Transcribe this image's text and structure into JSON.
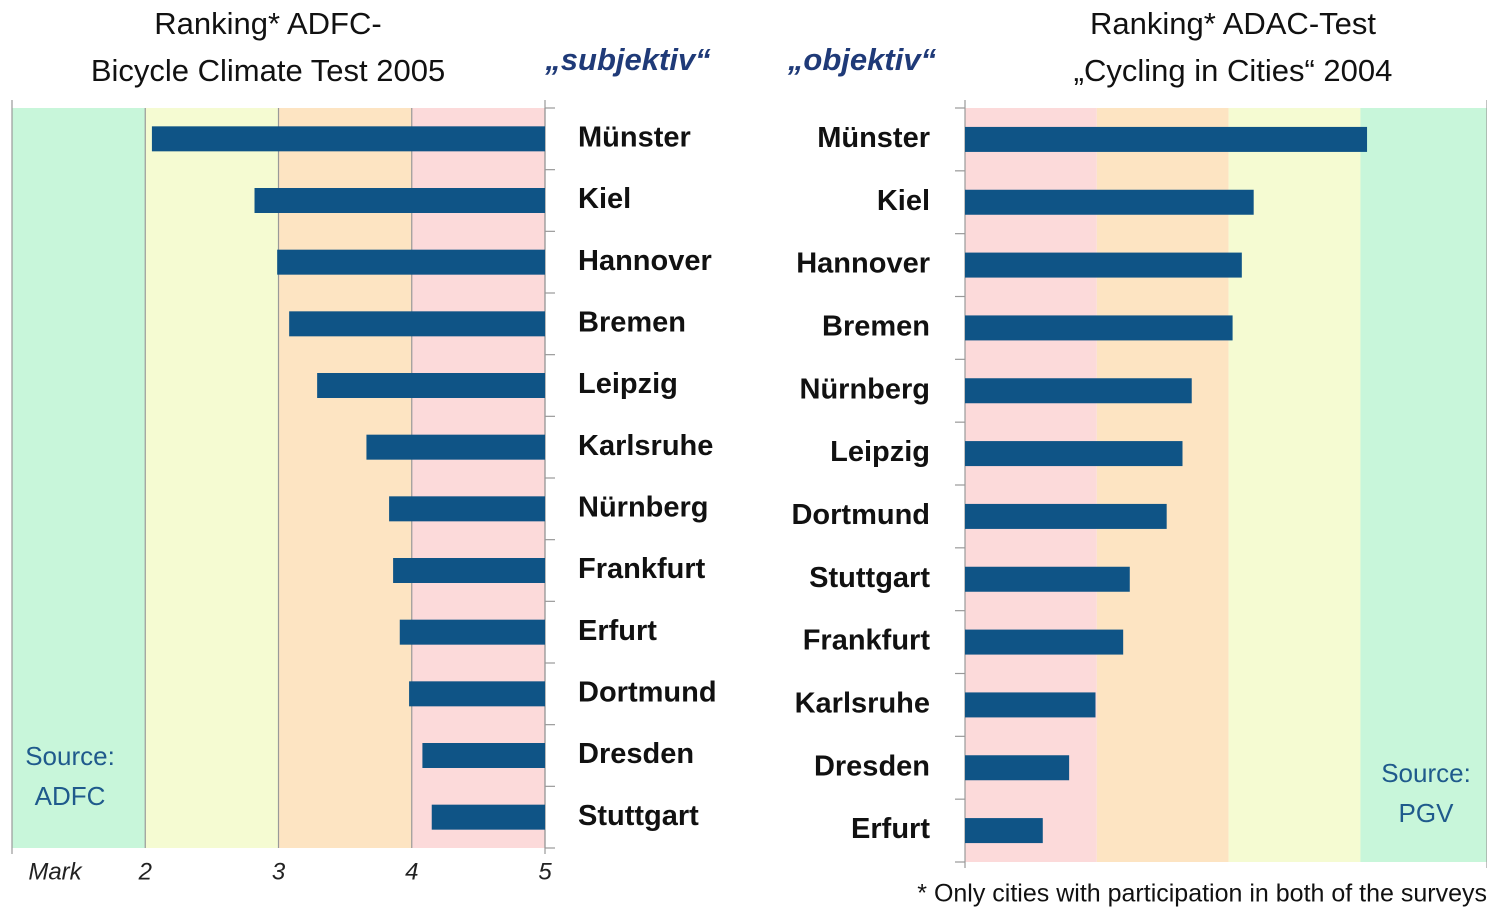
{
  "chart_data": [
    {
      "type": "bar",
      "orientation": "horizontal",
      "title": [
        "Ranking* ADFC-",
        "Bicycle Climate Test 2005"
      ],
      "subtitle": "„subjektiv“",
      "source": [
        "Source:",
        "ADFC"
      ],
      "xlabel": "Mark",
      "categories": [
        "Münster",
        "Kiel",
        "Hannover",
        "Bremen",
        "Leipzig",
        "Karlsruhe",
        "Nürnberg",
        "Frankfurt",
        "Erfurt",
        "Dortmund",
        "Dresden",
        "Stuttgart"
      ],
      "values": [
        2.05,
        2.82,
        2.99,
        3.08,
        3.29,
        3.66,
        3.83,
        3.86,
        3.91,
        3.98,
        4.08,
        4.15
      ],
      "color": "#0f5486",
      "xlim": [
        1,
        5
      ],
      "xticks": [
        2,
        3,
        4,
        5
      ],
      "bands": [
        {
          "from": 1,
          "to": 2,
          "color": "#c8f6da"
        },
        {
          "from": 2,
          "to": 3,
          "color": "#f5fbd2"
        },
        {
          "from": 3,
          "to": 4,
          "color": "#fde4c2"
        },
        {
          "from": 4,
          "to": 5,
          "color": "#fcdada"
        }
      ]
    },
    {
      "type": "bar",
      "orientation": "horizontal",
      "title": [
        "Ranking* ADAC-Test",
        "„Cycling in Cities“ 2004"
      ],
      "subtitle": "„objektiv“",
      "source": [
        "Source:",
        "PGV"
      ],
      "categories": [
        "Münster",
        "Kiel",
        "Hannover",
        "Bremen",
        "Nürnberg",
        "Leipzig",
        "Dortmund",
        "Stuttgart",
        "Frankfurt",
        "Karlsruhe",
        "Dresden",
        "Erfurt"
      ],
      "values": [
        3.05,
        2.19,
        2.1,
        2.03,
        1.72,
        1.65,
        1.53,
        1.25,
        1.2,
        0.99,
        0.79,
        0.59
      ],
      "color": "#0f5486",
      "xlim": [
        0,
        3.96
      ],
      "bands": [
        {
          "from": 0,
          "to": 1,
          "color": "#fcdada"
        },
        {
          "from": 1,
          "to": 2,
          "color": "#fde4c2"
        },
        {
          "from": 2,
          "to": 3,
          "color": "#f5fbd2"
        },
        {
          "from": 3,
          "to": 3.96,
          "color": "#c8f6da"
        }
      ]
    }
  ],
  "footnote": "* Only cities with participation in both of the surveys"
}
